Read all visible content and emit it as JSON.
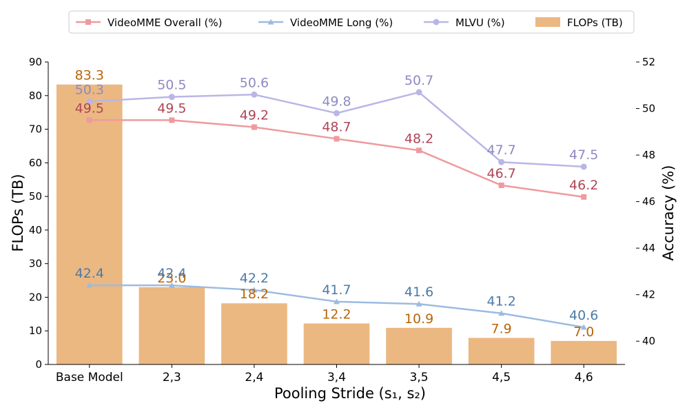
{
  "chart_data": {
    "type": "bar+line",
    "categories": [
      "Base Model",
      "2,3",
      "2,4",
      "3,4",
      "3,5",
      "4,5",
      "4,6"
    ],
    "xlabel": "Pooling Stride (s₁, s₂)",
    "ylabel_left": "FLOPs (TB)",
    "ylabel_right": "Accuracy (%)",
    "ylim_left": [
      0,
      90
    ],
    "ylim_right": [
      39,
      52
    ],
    "yticks_left": [
      "0",
      "10",
      "20",
      "30",
      "40",
      "50",
      "60",
      "70",
      "80",
      "90"
    ],
    "yticks_right": [
      "40",
      "42",
      "44",
      "46",
      "48",
      "50",
      "52"
    ],
    "legend_position": "top-center",
    "grid": false,
    "bars": {
      "name": "FLOPs (TB)",
      "color": "#ebb882",
      "label_color": "#b8650a",
      "values": [
        83.3,
        23.0,
        18.2,
        12.2,
        10.9,
        7.9,
        7.0
      ],
      "labels": [
        "83.3",
        "23.0",
        "18.2",
        "12.2",
        "10.9",
        "7.9",
        "7.0"
      ]
    },
    "series": [
      {
        "name": "VideoMME Overall (%)",
        "color": "#ee9a9e",
        "label_color": "#b04657",
        "marker": "square",
        "values": [
          49.5,
          49.5,
          49.2,
          48.7,
          48.2,
          46.7,
          46.2
        ],
        "labels": [
          "49.5",
          "49.5",
          "49.2",
          "48.7",
          "48.2",
          "46.7",
          "46.2"
        ]
      },
      {
        "name": "VideoMME Long (%)",
        "color": "#9bbbe0",
        "label_color": "#4c7aa6",
        "marker": "triangle",
        "values": [
          42.4,
          42.4,
          42.2,
          41.7,
          41.6,
          41.2,
          40.6
        ],
        "labels": [
          "42.4",
          "42.4",
          "42.2",
          "41.7",
          "41.6",
          "41.2",
          "40.6"
        ]
      },
      {
        "name": "MLVU (%)",
        "color": "#b9b6e6",
        "label_color": "#8f89c2",
        "marker": "circle",
        "values": [
          50.3,
          50.5,
          50.6,
          49.8,
          50.7,
          47.7,
          47.5
        ],
        "labels": [
          "50.3",
          "50.5",
          "50.6",
          "49.8",
          "50.7",
          "47.7",
          "47.5"
        ]
      }
    ]
  }
}
